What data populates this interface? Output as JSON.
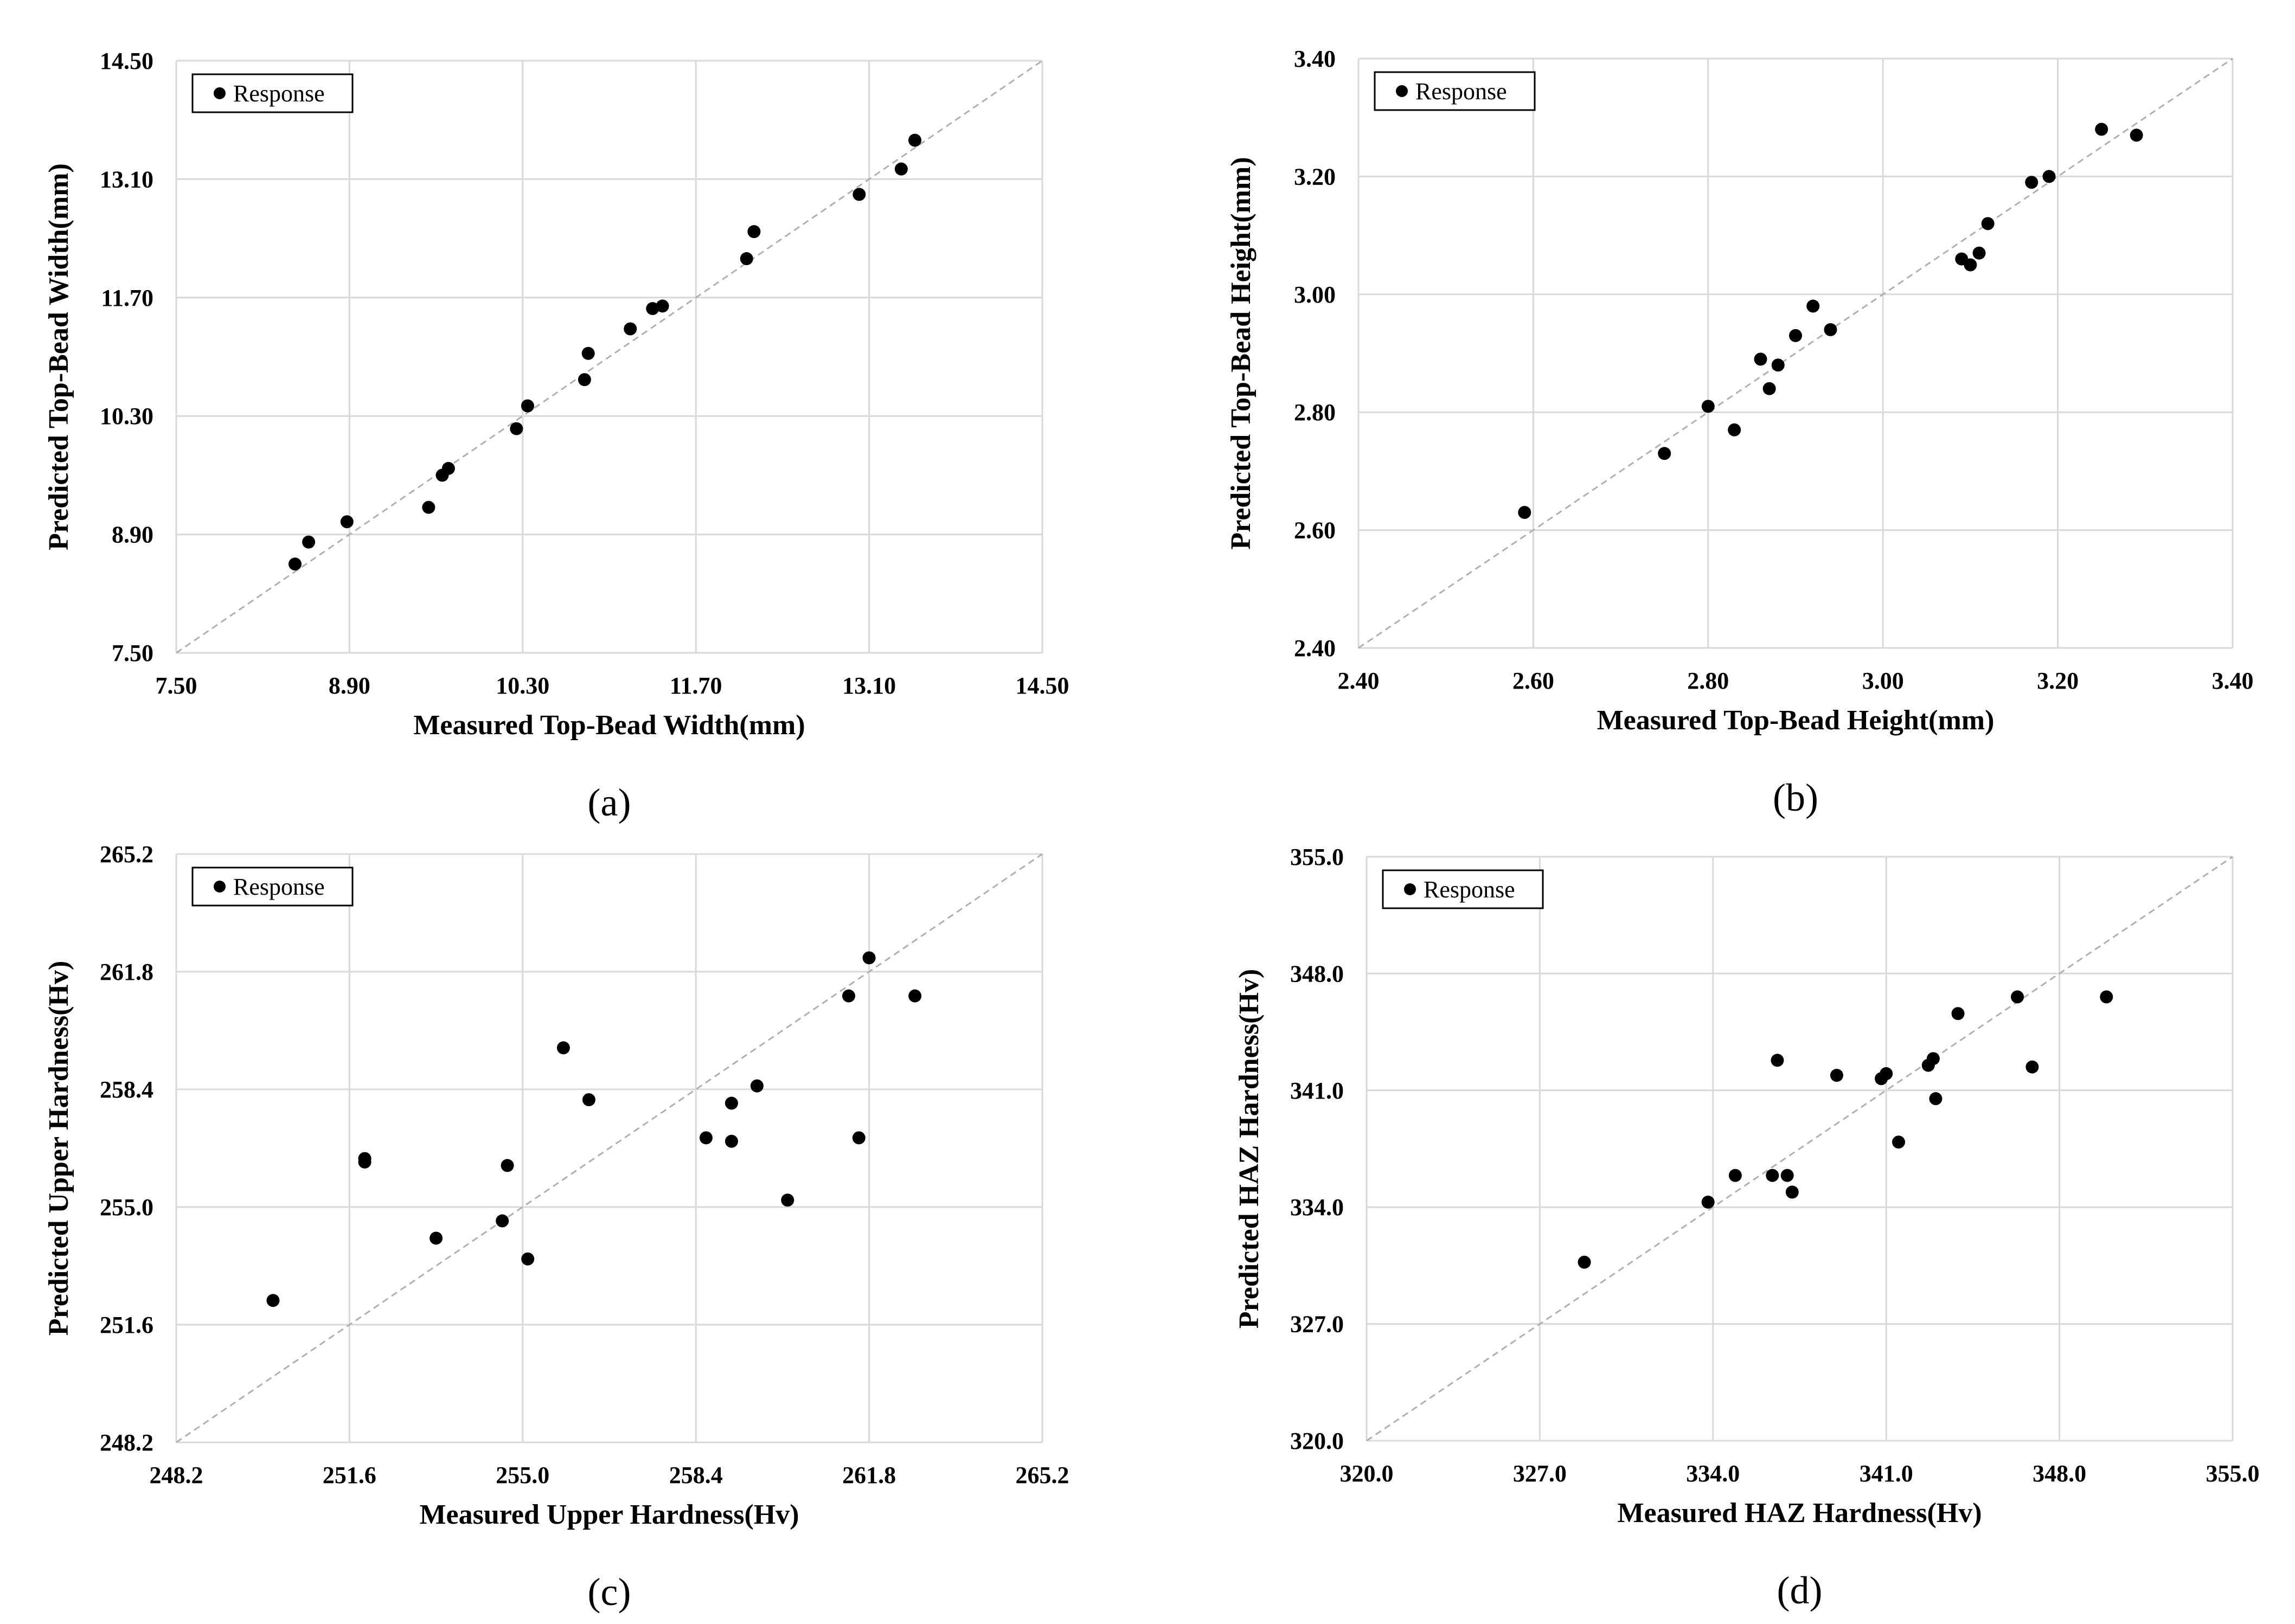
{
  "chart_data": [
    {
      "type": "scatter",
      "id": "a",
      "panel_label": "(a)",
      "xlabel": "Measured Top-Bead Width(mm)",
      "ylabel": "Predicted Top-Bead Width(mm)",
      "xlim": [
        7.5,
        14.5
      ],
      "ylim": [
        7.5,
        14.5
      ],
      "xticks": [
        "7.50",
        "8.90",
        "10.30",
        "11.70",
        "13.10",
        "14.50"
      ],
      "yticks": [
        "7.50",
        "8.90",
        "10.30",
        "11.70",
        "13.10",
        "14.50"
      ],
      "grid": true,
      "reference_line": "y = x (dashed)",
      "legend": "Response",
      "legend_position": "top-left",
      "series": [
        {
          "name": "Response",
          "points": [
            [
              8.46,
              8.55
            ],
            [
              8.57,
              8.81
            ],
            [
              8.88,
              9.05
            ],
            [
              9.54,
              9.22
            ],
            [
              9.65,
              9.6
            ],
            [
              9.7,
              9.68
            ],
            [
              10.25,
              10.15
            ],
            [
              10.34,
              10.42
            ],
            [
              10.8,
              10.73
            ],
            [
              10.83,
              11.04
            ],
            [
              11.17,
              11.33
            ],
            [
              11.35,
              11.57
            ],
            [
              11.43,
              11.6
            ],
            [
              12.11,
              12.16
            ],
            [
              12.17,
              12.48
            ],
            [
              13.02,
              12.92
            ],
            [
              13.36,
              13.22
            ],
            [
              13.47,
              13.56
            ]
          ]
        }
      ]
    },
    {
      "type": "scatter",
      "id": "b",
      "panel_label": "(b)",
      "xlabel": "Measured Top-Bead Height(mm)",
      "ylabel": "Predicted Top-Bead Height(mm)",
      "xlim": [
        2.4,
        3.4
      ],
      "ylim": [
        2.4,
        3.4
      ],
      "xticks": [
        "2.40",
        "2.60",
        "2.80",
        "3.00",
        "3.20",
        "3.40"
      ],
      "yticks": [
        "2.40",
        "2.60",
        "2.80",
        "3.00",
        "3.20",
        "3.40"
      ],
      "grid": true,
      "reference_line": "y = x (dashed)",
      "legend": "Response",
      "legend_position": "top-left",
      "series": [
        {
          "name": "Response",
          "points": [
            [
              2.59,
              2.63
            ],
            [
              2.75,
              2.73
            ],
            [
              2.8,
              2.81
            ],
            [
              2.83,
              2.77
            ],
            [
              2.86,
              2.89
            ],
            [
              2.87,
              2.84
            ],
            [
              2.88,
              2.88
            ],
            [
              2.9,
              2.93
            ],
            [
              2.92,
              2.98
            ],
            [
              2.94,
              2.94
            ],
            [
              3.09,
              3.06
            ],
            [
              3.1,
              3.05
            ],
            [
              3.11,
              3.07
            ],
            [
              3.12,
              3.12
            ],
            [
              3.17,
              3.19
            ],
            [
              3.19,
              3.2
            ],
            [
              3.25,
              3.28
            ],
            [
              3.29,
              3.27
            ]
          ]
        }
      ]
    },
    {
      "type": "scatter",
      "id": "c",
      "panel_label": "(c)",
      "xlabel": "Measured Upper Hardness(Hv)",
      "ylabel": "Predicted Upper Hardness(Hv)",
      "xlim": [
        248.2,
        265.2
      ],
      "ylim": [
        248.2,
        265.2
      ],
      "xticks": [
        "248.2",
        "251.6",
        "255.0",
        "258.4",
        "261.8",
        "265.2"
      ],
      "yticks": [
        "248.2",
        "251.6",
        "255.0",
        "258.4",
        "261.8",
        "265.2"
      ],
      "grid": true,
      "reference_line": "y = x (dashed)",
      "legend": "Response",
      "legend_position": "top-left",
      "series": [
        {
          "name": "Response",
          "points": [
            [
              250.1,
              252.3
            ],
            [
              251.9,
              256.4
            ],
            [
              251.9,
              256.3
            ],
            [
              253.3,
              254.1
            ],
            [
              254.6,
              254.6
            ],
            [
              254.7,
              256.2
            ],
            [
              255.1,
              253.5
            ],
            [
              255.8,
              259.6
            ],
            [
              256.3,
              258.1
            ],
            [
              258.6,
              257.0
            ],
            [
              259.1,
              258.0
            ],
            [
              259.1,
              256.9
            ],
            [
              259.6,
              258.5
            ],
            [
              260.2,
              255.2
            ],
            [
              261.4,
              261.1
            ],
            [
              261.6,
              257.0
            ],
            [
              261.8,
              262.2
            ],
            [
              262.7,
              261.1
            ]
          ]
        }
      ]
    },
    {
      "type": "scatter",
      "id": "d",
      "panel_label": "(d)",
      "xlabel": "Measured HAZ Hardness(Hv)",
      "ylabel": "Predicted HAZ Hardness(Hv)",
      "xlim": [
        320.0,
        355.0
      ],
      "ylim": [
        320.0,
        355.0
      ],
      "xticks": [
        "320.0",
        "327.0",
        "334.0",
        "341.0",
        "348.0",
        "355.0"
      ],
      "yticks": [
        "320.0",
        "327.0",
        "334.0",
        "341.0",
        "348.0",
        "355.0"
      ],
      "grid": true,
      "reference_line": "y = x (dashed)",
      "legend": "Response",
      "legend_position": "top-left",
      "series": [
        {
          "name": "Response",
          "points": [
            [
              328.8,
              330.7
            ],
            [
              333.8,
              334.3
            ],
            [
              334.9,
              335.9
            ],
            [
              336.4,
              335.9
            ],
            [
              336.6,
              342.8
            ],
            [
              337.0,
              335.9
            ],
            [
              337.2,
              334.9
            ],
            [
              339.0,
              341.9
            ],
            [
              340.8,
              341.7
            ],
            [
              341.0,
              342.0
            ],
            [
              341.5,
              337.9
            ],
            [
              342.7,
              342.5
            ],
            [
              342.9,
              342.9
            ],
            [
              343.0,
              340.5
            ],
            [
              343.9,
              345.6
            ],
            [
              346.3,
              346.6
            ],
            [
              346.9,
              342.4
            ],
            [
              349.9,
              346.6
            ]
          ]
        }
      ]
    }
  ]
}
